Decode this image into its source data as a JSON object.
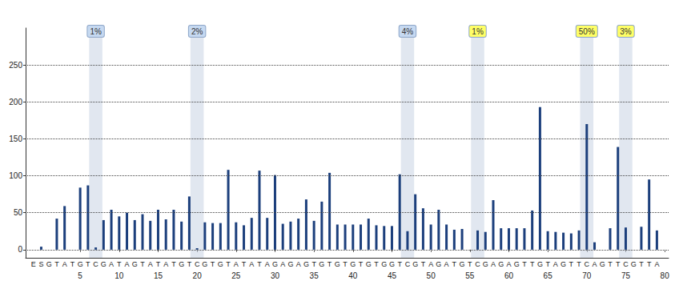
{
  "chart_data": {
    "type": "bar",
    "x": [
      -1,
      0,
      1,
      2,
      3,
      4,
      5,
      6,
      7,
      8,
      9,
      10,
      11,
      12,
      13,
      14,
      15,
      16,
      17,
      18,
      19,
      20,
      21,
      22,
      23,
      24,
      25,
      26,
      27,
      28,
      29,
      30,
      31,
      32,
      33,
      34,
      35,
      36,
      37,
      38,
      39,
      40,
      41,
      42,
      43,
      44,
      45,
      46,
      47,
      48,
      49,
      50,
      51,
      52,
      53,
      54,
      55,
      56,
      57,
      58,
      59,
      60,
      61,
      62,
      63,
      64,
      65,
      66,
      67,
      68,
      69,
      70,
      71,
      72,
      73,
      74,
      75,
      76,
      77,
      78,
      79
    ],
    "categories": [
      "E",
      "S",
      "G",
      "T",
      "A",
      "T",
      "G",
      "T",
      "C",
      "G",
      "A",
      "T",
      "A",
      "G",
      "T",
      "A",
      "T",
      "A",
      "T",
      "G",
      "T",
      "C",
      "G",
      "T",
      "G",
      "T",
      "A",
      "T",
      "A",
      "T",
      "A",
      "G",
      "A",
      "G",
      "A",
      "G",
      "T",
      "G",
      "T",
      "G",
      "T",
      "G",
      "T",
      "G",
      "T",
      "G",
      "G",
      "T",
      "C",
      "G",
      "T",
      "A",
      "G",
      "A",
      "T",
      "G",
      "T",
      "C",
      "G",
      "A",
      "G",
      "A",
      "G",
      "T",
      "T",
      "G",
      "T",
      "A",
      "G",
      "T",
      "T",
      "C",
      "A",
      "G",
      "T",
      "T",
      "C",
      "G",
      "T",
      "T",
      "A"
    ],
    "values": [
      0,
      4,
      0,
      42,
      59,
      0,
      84,
      87,
      3,
      40,
      54,
      45,
      50,
      40,
      48,
      39,
      54,
      41,
      54,
      38,
      72,
      2,
      37,
      36,
      36,
      108,
      37,
      33,
      43,
      107,
      43,
      101,
      35,
      38,
      42,
      68,
      39,
      65,
      104,
      34,
      34,
      34,
      34,
      42,
      33,
      32,
      32,
      102,
      25,
      75,
      56,
      34,
      54,
      34,
      27,
      28,
      0,
      26,
      24,
      67,
      29,
      29,
      29,
      29,
      53,
      193,
      25,
      24,
      23,
      22,
      26,
      170,
      10,
      0,
      29,
      139,
      30,
      0,
      31,
      95,
      26
    ],
    "color": "#1c3f7c",
    "xlim": [
      -2,
      80.5
    ],
    "xticks": [
      5,
      10,
      15,
      20,
      25,
      30,
      35,
      40,
      45,
      50,
      55,
      60,
      65,
      70,
      75,
      80
    ],
    "ylim": [
      -11,
      300
    ],
    "yticks": [
      0,
      50,
      100,
      150,
      200,
      250
    ],
    "grid": true,
    "annotations": [
      {
        "label": "1%",
        "x": 7,
        "color": "#c6d9f1"
      },
      {
        "label": "2%",
        "x": 20,
        "color": "#c6d9f1"
      },
      {
        "label": "4%",
        "x": 47,
        "color": "#c6d9f1"
      },
      {
        "label": "1%",
        "x": 56,
        "color": "#ffff66"
      },
      {
        "label": "50%",
        "x": 70,
        "color": "#ffff66"
      },
      {
        "label": "3%",
        "x": 75,
        "color": "#ffff66"
      }
    ]
  }
}
